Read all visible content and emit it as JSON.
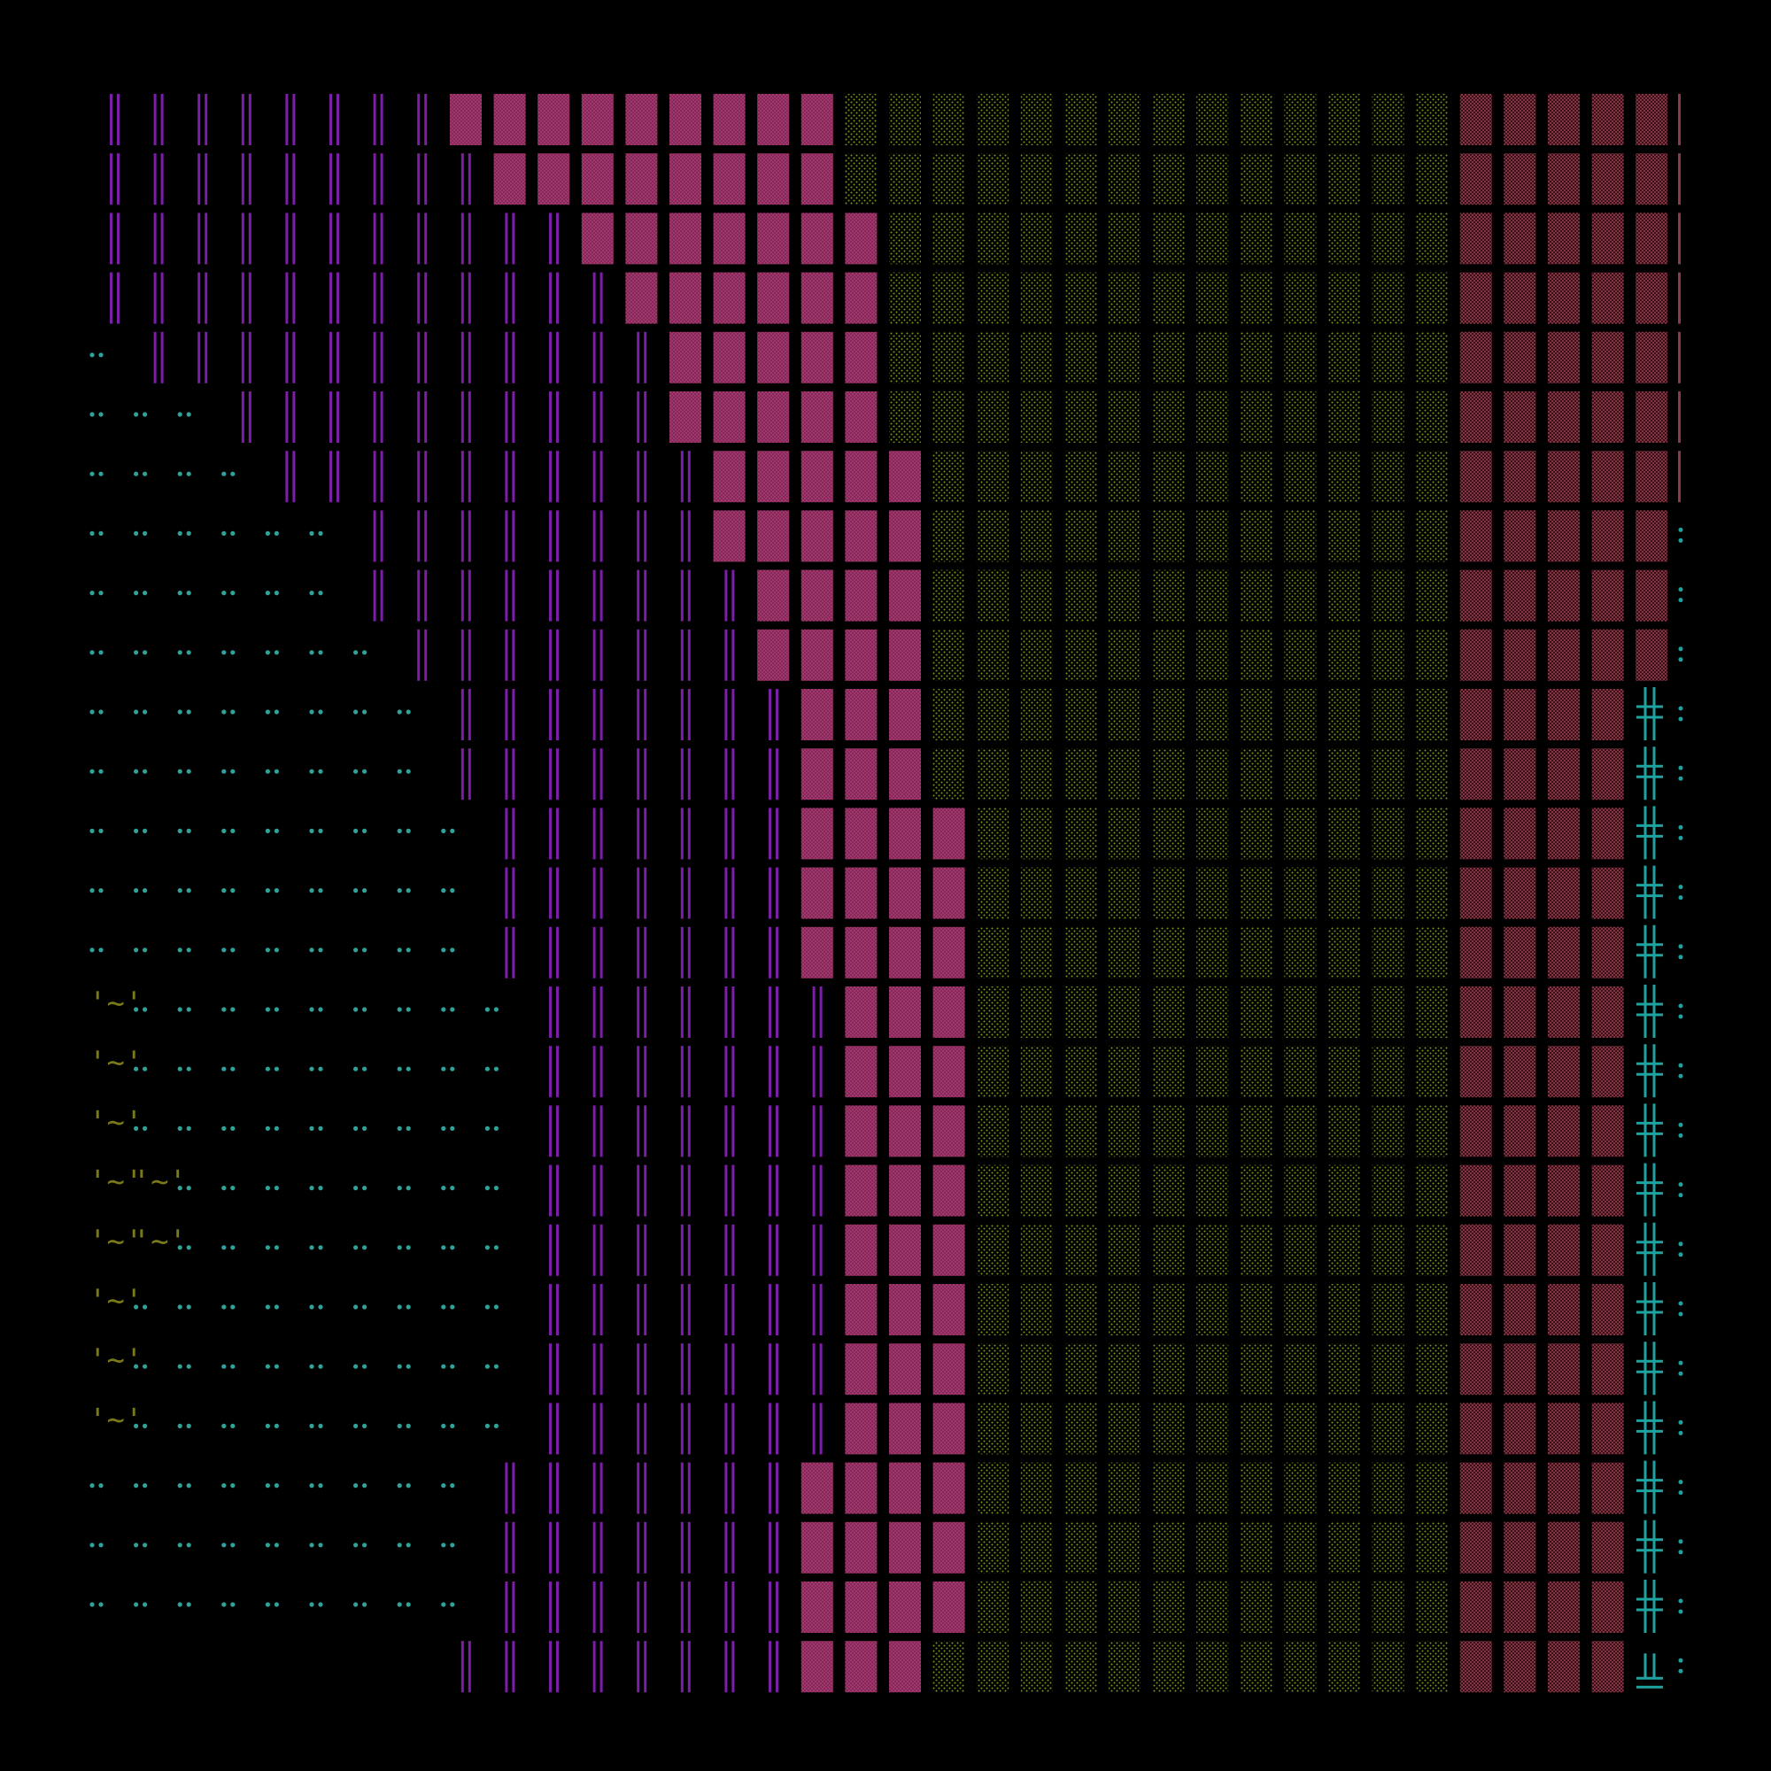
{
  "title": "",
  "background": "#000000",
  "grid": {
    "columns": 36,
    "rows": 27
  },
  "glyphs": {
    "dot-pair": "••",
    "double-bar": "‖",
    "dense-block": "▩",
    "light-shade": "░",
    "medium-shade": "▒",
    "cross": "╬",
    "bottom-cross": "╩",
    "colon": ":",
    "tilde-face": "'~'"
  },
  "colors": {
    "dots": "#2fa39a",
    "bars": "#7a1fa6",
    "dense": "#a3376d",
    "yellow": "#7a9a1a",
    "salmon": "#8a3a48",
    "cross": "#1fa3a0",
    "tilde": "#7a7a1a"
  },
  "rows": [
    {
      "dots": 0,
      "tilde": 0,
      "bars_start": 0,
      "bars_end": 8,
      "dense_end": 12,
      "yellow_end": 20,
      "salmon_end": 26,
      "right": "edge"
    },
    {
      "dots": 0,
      "tilde": 0,
      "bars_start": 0,
      "bars_end": 9,
      "dense_end": 12,
      "yellow_end": 20,
      "salmon_end": 26,
      "right": "edge"
    },
    {
      "dots": 0,
      "tilde": 0,
      "bars_start": 0,
      "bars_end": 11,
      "dense_end": 13,
      "yellow_end": 20,
      "salmon_end": 26,
      "right": "edge"
    },
    {
      "dots": 0,
      "tilde": 0,
      "bars_start": 0,
      "bars_end": 12,
      "dense_end": 13,
      "yellow_end": 20,
      "salmon_end": 26,
      "right": "edge"
    },
    {
      "dots": 1,
      "tilde": 0,
      "bars_start": 1,
      "bars_end": 13,
      "dense_end": 13,
      "yellow_end": 20,
      "salmon_end": 26,
      "right": "edge"
    },
    {
      "dots": 3,
      "tilde": 0,
      "bars_start": 3,
      "bars_end": 13,
      "dense_end": 13,
      "yellow_end": 20,
      "salmon_end": 26,
      "right": "edge"
    },
    {
      "dots": 4,
      "tilde": 0,
      "bars_start": 4,
      "bars_end": 14,
      "dense_end": 14,
      "yellow_end": 20,
      "salmon_end": 26,
      "right": "edge"
    },
    {
      "dots": 6,
      "tilde": 0,
      "bars_start": 6,
      "bars_end": 14,
      "dense_end": 14,
      "yellow_end": 20,
      "salmon_end": 26,
      "right": "colon"
    },
    {
      "dots": 6,
      "tilde": 0,
      "bars_start": 6,
      "bars_end": 15,
      "dense_end": 14,
      "yellow_end": 20,
      "salmon_end": 26,
      "right": "colon"
    },
    {
      "dots": 7,
      "tilde": 0,
      "bars_start": 7,
      "bars_end": 15,
      "dense_end": 14,
      "yellow_end": 20,
      "salmon_end": 26,
      "right": "colon"
    },
    {
      "dots": 8,
      "tilde": 0,
      "bars_start": 8,
      "bars_end": 16,
      "dense_end": 14,
      "yellow_end": 20,
      "salmon_end": 25,
      "right": "cross"
    },
    {
      "dots": 8,
      "tilde": 0,
      "bars_start": 8,
      "bars_end": 16,
      "dense_end": 14,
      "yellow_end": 20,
      "salmon_end": 25,
      "right": "cross"
    },
    {
      "dots": 9,
      "tilde": 0,
      "bars_start": 9,
      "bars_end": 16,
      "dense_end": 15,
      "yellow_end": 20,
      "salmon_end": 25,
      "right": "cross"
    },
    {
      "dots": 9,
      "tilde": 0,
      "bars_start": 9,
      "bars_end": 16,
      "dense_end": 15,
      "yellow_end": 20,
      "salmon_end": 25,
      "right": "cross"
    },
    {
      "dots": 9,
      "tilde": 0,
      "bars_start": 9,
      "bars_end": 16,
      "dense_end": 15,
      "yellow_end": 20,
      "salmon_end": 25,
      "right": "cross"
    },
    {
      "dots": 9,
      "tilde": 1,
      "bars_start": 10,
      "bars_end": 17,
      "dense_end": 15,
      "yellow_end": 20,
      "salmon_end": 25,
      "right": "cross"
    },
    {
      "dots": 9,
      "tilde": 1,
      "bars_start": 10,
      "bars_end": 17,
      "dense_end": 15,
      "yellow_end": 20,
      "salmon_end": 25,
      "right": "cross"
    },
    {
      "dots": 9,
      "tilde": 1,
      "bars_start": 10,
      "bars_end": 17,
      "dense_end": 15,
      "yellow_end": 20,
      "salmon_end": 25,
      "right": "cross"
    },
    {
      "dots": 8,
      "tilde": 2,
      "bars_start": 10,
      "bars_end": 17,
      "dense_end": 15,
      "yellow_end": 20,
      "salmon_end": 25,
      "right": "cross"
    },
    {
      "dots": 8,
      "tilde": 2,
      "bars_start": 10,
      "bars_end": 17,
      "dense_end": 15,
      "yellow_end": 20,
      "salmon_end": 25,
      "right": "cross"
    },
    {
      "dots": 9,
      "tilde": 1,
      "bars_start": 10,
      "bars_end": 17,
      "dense_end": 15,
      "yellow_end": 20,
      "salmon_end": 25,
      "right": "cross"
    },
    {
      "dots": 9,
      "tilde": 1,
      "bars_start": 10,
      "bars_end": 17,
      "dense_end": 15,
      "yellow_end": 20,
      "salmon_end": 25,
      "right": "cross"
    },
    {
      "dots": 9,
      "tilde": 1,
      "bars_start": 10,
      "bars_end": 17,
      "dense_end": 15,
      "yellow_end": 20,
      "salmon_end": 25,
      "right": "cross"
    },
    {
      "dots": 9,
      "tilde": 0,
      "bars_start": 9,
      "bars_end": 16,
      "dense_end": 15,
      "yellow_end": 20,
      "salmon_end": 25,
      "right": "cross"
    },
    {
      "dots": 9,
      "tilde": 0,
      "bars_start": 9,
      "bars_end": 16,
      "dense_end": 15,
      "yellow_end": 20,
      "salmon_end": 25,
      "right": "cross"
    },
    {
      "dots": 9,
      "tilde": 0,
      "bars_start": 9,
      "bars_end": 16,
      "dense_end": 15,
      "yellow_end": 20,
      "salmon_end": 25,
      "right": "cross"
    },
    {
      "dots": 0,
      "tilde": 0,
      "bars_start": 8,
      "bars_end": 16,
      "dense_end": 14,
      "yellow_end": 20,
      "salmon_end": 25,
      "right": "bottom-cross"
    }
  ]
}
